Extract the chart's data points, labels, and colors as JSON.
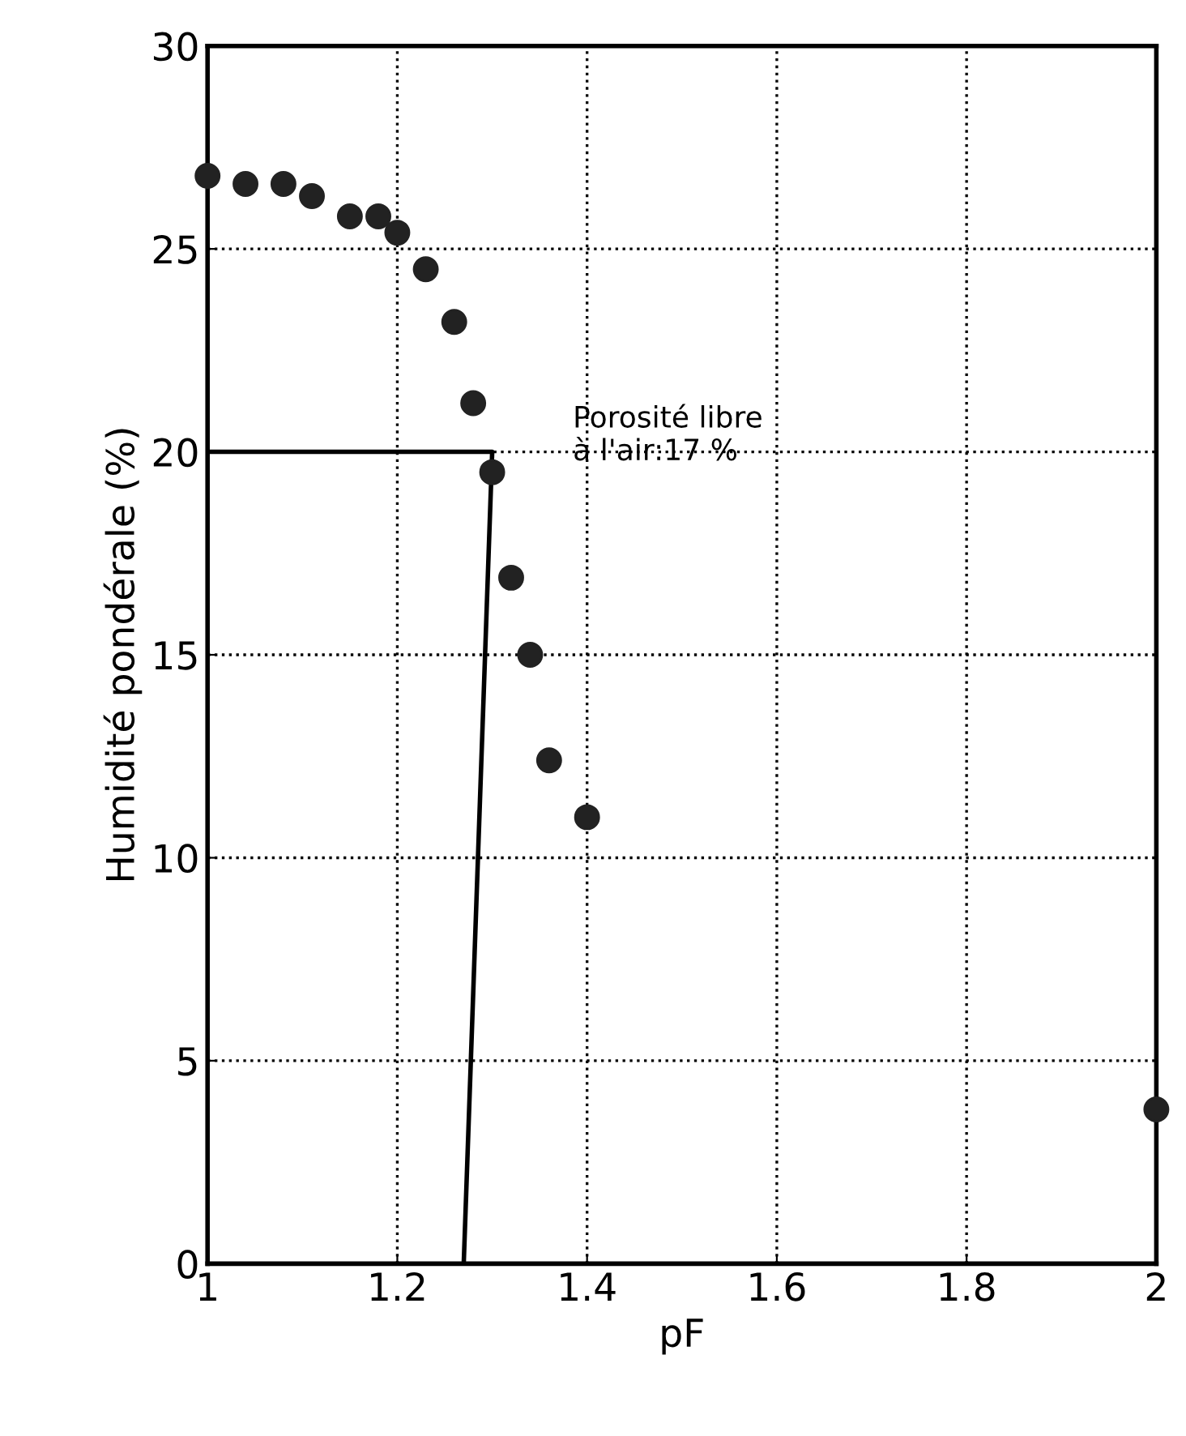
{
  "chart_data": {
    "type": "scatter",
    "xlabel": "pF",
    "ylabel": "Humidité pondérale (%)",
    "xlim": [
      1,
      2
    ],
    "xticks": [
      1,
      1.2,
      1.4,
      1.6,
      1.8,
      2
    ],
    "ylim": [
      0,
      30
    ],
    "yticks": [
      0,
      5,
      10,
      15,
      20,
      25,
      30
    ],
    "grid": true,
    "marker": "circle",
    "series": [
      {
        "color": "#222222",
        "x": [
          1.0,
          1.04,
          1.08,
          1.11,
          1.15,
          1.18,
          1.2,
          1.23,
          1.26,
          1.28,
          1.3,
          1.32,
          1.34,
          1.36,
          1.4,
          2.0
        ],
        "values": [
          26.8,
          26.6,
          26.6,
          26.3,
          25.8,
          25.8,
          25.4,
          24.5,
          23.2,
          21.2,
          19.5,
          16.9,
          15.0,
          12.4,
          11.0,
          3.8
        ]
      },
      {
        "type": "line",
        "color": "#000000",
        "x": [
          1.0,
          1.3,
          1.27
        ],
        "values": [
          20,
          20,
          0
        ],
        "marker": "none"
      }
    ],
    "annotations": [
      "Porosité libre\nà l'air:17 %"
    ]
  }
}
